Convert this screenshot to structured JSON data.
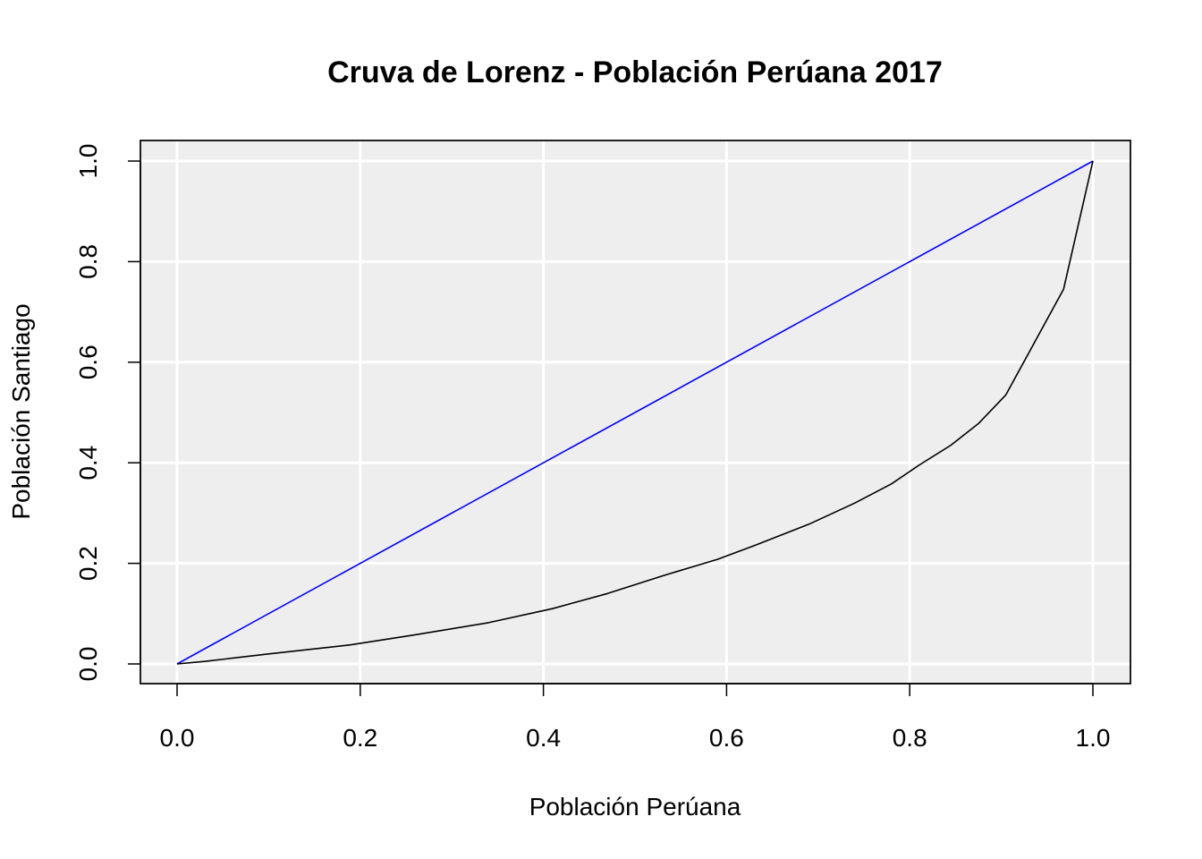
{
  "chart_data": {
    "type": "line",
    "title": "Cruva de Lorenz - Población Perúana 2017",
    "xlabel": "Población Perúana",
    "ylabel": "Población Santiago",
    "xlim": [
      0,
      1
    ],
    "ylim": [
      0,
      1
    ],
    "x_ticks": [
      0.0,
      0.2,
      0.4,
      0.6,
      0.8,
      1.0
    ],
    "x_tick_labels": [
      "0.0",
      "0.2",
      "0.4",
      "0.6",
      "0.8",
      "1.0"
    ],
    "y_ticks": [
      0.0,
      0.2,
      0.4,
      0.6,
      0.8,
      1.0
    ],
    "y_tick_labels": [
      "0.0",
      "0.2",
      "0.4",
      "0.6",
      "0.8",
      "1.0"
    ],
    "grid": true,
    "background": "#eeeeee",
    "series": [
      {
        "color": "#0000ff",
        "x": [
          0.0,
          1.0
        ],
        "y": [
          0.0,
          1.0
        ]
      },
      {
        "color": "#000000",
        "x": [
          0.0,
          0.03,
          0.1,
          0.19,
          0.26,
          0.34,
          0.41,
          0.47,
          0.53,
          0.59,
          0.63,
          0.69,
          0.74,
          0.78,
          0.81,
          0.845,
          0.875,
          0.905,
          0.935,
          0.968,
          1.0
        ],
        "y": [
          0.0,
          0.005,
          0.02,
          0.038,
          0.058,
          0.082,
          0.11,
          0.14,
          0.175,
          0.208,
          0.235,
          0.278,
          0.32,
          0.358,
          0.395,
          0.435,
          0.478,
          0.535,
          0.635,
          0.745,
          1.0
        ]
      }
    ]
  }
}
